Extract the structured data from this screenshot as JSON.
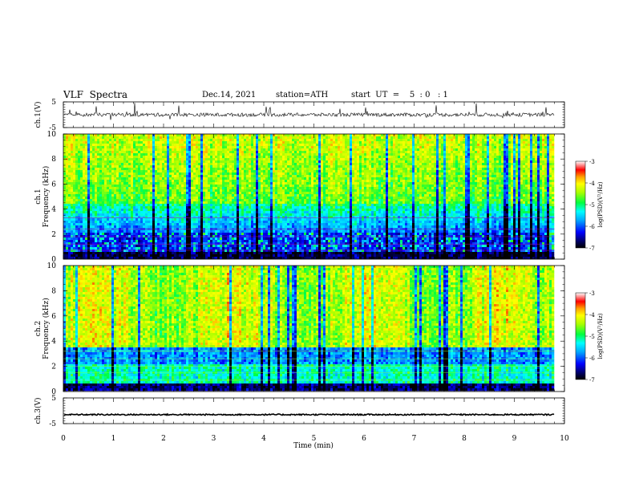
{
  "header": {
    "title": "VLF  Spectra",
    "date": "Dec.14, 2021",
    "station": "station=ATH",
    "start_time": "start  UT  =    5  : 0   : 1"
  },
  "chart_data": [
    {
      "type": "line",
      "name": "ch1-waveform",
      "ylabel": "ch.1(V)",
      "ylim": [
        -5,
        5
      ],
      "yticks": [
        "5",
        "-5"
      ],
      "xlim": [
        0,
        10
      ],
      "description_level": 0
    },
    {
      "type": "heatmap",
      "name": "ch1-spectrogram",
      "ylabel": "ch.1\nFrequency (kHz)",
      "ylim": [
        0,
        10
      ],
      "yticks": [
        "0",
        "2",
        "4",
        "6",
        "8",
        "10"
      ],
      "xlim": [
        0,
        10
      ],
      "colorbar": {
        "label": "log(PSD)(V²/Hz)",
        "range": [
          -7,
          -3
        ],
        "ticks": [
          "-3",
          "-4",
          "-5",
          "-6",
          "-7"
        ]
      }
    },
    {
      "type": "heatmap",
      "name": "ch2-spectrogram",
      "ylabel": "ch.2\nFrequency (kHz)",
      "ylim": [
        0,
        10
      ],
      "yticks": [
        "0",
        "2",
        "4",
        "6",
        "8",
        "10"
      ],
      "xlim": [
        0,
        10
      ],
      "colorbar": {
        "label": "log(PSD)(V²/Hz)",
        "range": [
          -7,
          -3
        ],
        "ticks": [
          "-3",
          "-4",
          "-5",
          "-6",
          "-7"
        ]
      }
    },
    {
      "type": "line",
      "name": "ch3-waveform",
      "ylabel": "ch.3(V)",
      "ylim": [
        -5,
        5
      ],
      "yticks": [
        "5",
        "-5"
      ],
      "xlim": [
        0,
        10
      ],
      "description_level": -1.5
    }
  ],
  "xaxis": {
    "label": "Time  (min)",
    "range": [
      0,
      10
    ],
    "ticks": [
      "0",
      "1",
      "2",
      "3",
      "4",
      "5",
      "6",
      "7",
      "8",
      "9",
      "10"
    ]
  }
}
